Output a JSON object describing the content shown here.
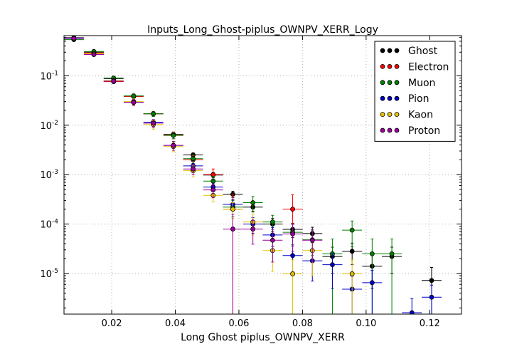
{
  "chart_data": {
    "type": "scatter",
    "title": "Inputs_Long_Ghost-piplus_OWNPV_XERR_Logy",
    "xlabel": "Long Ghost piplus_OWNPV_XERR",
    "ylabel": "",
    "xlim": [
      0.005,
      0.13
    ],
    "ylim": [
      1.5e-06,
      0.65
    ],
    "yscale": "log",
    "grid": true,
    "legend_position": "top-right",
    "x_ticks": [
      {
        "value": 0.02,
        "label": "0.02"
      },
      {
        "value": 0.04,
        "label": "0.04"
      },
      {
        "value": 0.06,
        "label": "0.06"
      },
      {
        "value": 0.08,
        "label": "0.08"
      },
      {
        "value": 0.1,
        "label": "0.10"
      },
      {
        "value": 0.12,
        "label": "0.12"
      }
    ],
    "y_ticks": [
      {
        "value": 1e-05,
        "base": "10",
        "exp": "-5"
      },
      {
        "value": 0.0001,
        "base": "10",
        "exp": "-4"
      },
      {
        "value": 0.001,
        "base": "10",
        "exp": "-3"
      },
      {
        "value": 0.01,
        "base": "10",
        "exp": "-2"
      },
      {
        "value": 0.1,
        "base": "10",
        "exp": "-1"
      }
    ],
    "bin_half_width": 0.003125,
    "series": [
      {
        "name": "Ghost",
        "color": "#000000",
        "points": [
          [
            0.0081,
            0.59,
            0.015
          ],
          [
            0.0144,
            0.3,
            0.01
          ],
          [
            0.0206,
            0.088,
            0.005
          ],
          [
            0.0269,
            0.039,
            0.0025
          ],
          [
            0.0331,
            0.017,
            0.0012
          ],
          [
            0.0394,
            0.0065,
            0.0006
          ],
          [
            0.0456,
            0.0025,
            0.00025
          ],
          [
            0.0519,
            0.00098,
            0.00012
          ],
          [
            0.0581,
            0.0004,
            6e-05
          ],
          [
            0.0644,
            0.00022,
            4.5e-05
          ],
          [
            0.0706,
            0.0001,
            3e-05
          ],
          [
            0.0769,
            7.8e-05,
            2.5e-05
          ],
          [
            0.0831,
            6.4e-05,
            2.2e-05
          ],
          [
            0.0894,
            2.2e-05,
            1.2e-05
          ],
          [
            0.0956,
            2.8e-05,
            1.3e-05
          ],
          [
            0.1019,
            1.4e-05,
            9e-06
          ],
          [
            0.1081,
            2.2e-05,
            1.2e-05
          ],
          [
            0.1206,
            7.2e-06,
            6e-06
          ]
        ]
      },
      {
        "name": "Electron",
        "color": "#ff0000",
        "points": [
          [
            0.0081,
            0.58,
            0.02
          ],
          [
            0.0144,
            0.29,
            0.015
          ],
          [
            0.0206,
            0.076,
            0.006
          ],
          [
            0.0269,
            0.038,
            0.004
          ],
          [
            0.0331,
            0.017,
            0.002
          ],
          [
            0.0394,
            0.0063,
            0.001
          ],
          [
            0.0456,
            0.002,
            0.0004
          ],
          [
            0.0519,
            0.001,
            0.0003
          ],
          [
            0.0581,
            0.0002,
            0.000199
          ],
          [
            0.0769,
            0.0002,
            0.00019
          ]
        ]
      },
      {
        "name": "Muon",
        "color": "#008000",
        "points": [
          [
            0.0081,
            0.54,
            0.02
          ],
          [
            0.0144,
            0.31,
            0.015
          ],
          [
            0.0206,
            0.09,
            0.007
          ],
          [
            0.0269,
            0.039,
            0.004
          ],
          [
            0.0331,
            0.017,
            0.002
          ],
          [
            0.0394,
            0.0062,
            0.0009
          ],
          [
            0.0456,
            0.0021,
            0.0004
          ],
          [
            0.0519,
            0.00074,
            0.00018
          ],
          [
            0.0581,
            0.00022,
            8e-05
          ],
          [
            0.0644,
            0.00027,
            9e-05
          ],
          [
            0.0706,
            0.00011,
            4e-05
          ],
          [
            0.0769,
            6.8e-05,
            3e-05
          ],
          [
            0.0831,
            4.8e-05,
            2.5e-05
          ],
          [
            0.0894,
            2.5e-05,
            2.49e-05
          ],
          [
            0.0956,
            7.5e-05,
            4e-05
          ],
          [
            0.1019,
            2.5e-05,
            2.49e-05
          ],
          [
            0.1081,
            2.5e-05,
            2.49e-05
          ]
        ]
      },
      {
        "name": "Pion",
        "color": "#0000cc",
        "points": [
          [
            0.0081,
            0.58,
            0.012
          ],
          [
            0.0144,
            0.27,
            0.008
          ],
          [
            0.0206,
            0.078,
            0.004
          ],
          [
            0.0269,
            0.029,
            0.002
          ],
          [
            0.0331,
            0.0115,
            0.0009
          ],
          [
            0.0394,
            0.0039,
            0.0004
          ],
          [
            0.0456,
            0.0015,
            0.00018
          ],
          [
            0.0519,
            0.00056,
            9e-05
          ],
          [
            0.0581,
            0.00025,
            6e-05
          ],
          [
            0.0644,
            0.0001,
            3.5e-05
          ],
          [
            0.0706,
            6e-05,
            2.5e-05
          ],
          [
            0.0769,
            2.3e-05,
            1.3e-05
          ],
          [
            0.0831,
            1.8e-05,
            1.1e-05
          ],
          [
            0.0894,
            1.5e-05,
            1e-05
          ],
          [
            0.0956,
            4.8e-06,
            4e-06
          ],
          [
            0.1019,
            6.5e-06,
            5e-06
          ],
          [
            0.1144,
            1.6e-06,
            1.5e-06
          ],
          [
            0.1206,
            3.3e-06,
            2.5e-06
          ]
        ]
      },
      {
        "name": "Kaon",
        "color": "#e6c200",
        "points": [
          [
            0.0081,
            0.57,
            0.02
          ],
          [
            0.0144,
            0.28,
            0.015
          ],
          [
            0.0206,
            0.08,
            0.007
          ],
          [
            0.0269,
            0.03,
            0.004
          ],
          [
            0.0331,
            0.0103,
            0.002
          ],
          [
            0.0394,
            0.0037,
            0.0008
          ],
          [
            0.0456,
            0.0012,
            0.0003
          ],
          [
            0.0519,
            0.00038,
            0.0001
          ],
          [
            0.0581,
            0.0002,
            7e-05
          ],
          [
            0.0644,
            0.00011,
            5e-05
          ],
          [
            0.0706,
            2.9e-05,
            1.8e-05
          ],
          [
            0.0769,
            9.8e-06,
            9e-06
          ],
          [
            0.0831,
            2.9e-05,
            2e-05
          ],
          [
            0.0956,
            9.8e-06,
            9e-06
          ]
        ]
      },
      {
        "name": "Proton",
        "color": "#990099",
        "points": [
          [
            0.0081,
            0.57,
            0.02
          ],
          [
            0.0144,
            0.27,
            0.015
          ],
          [
            0.0206,
            0.078,
            0.007
          ],
          [
            0.0269,
            0.029,
            0.004
          ],
          [
            0.0331,
            0.011,
            0.002
          ],
          [
            0.0394,
            0.0039,
            0.0008
          ],
          [
            0.0456,
            0.0013,
            0.0003
          ],
          [
            0.0519,
            0.00049,
            0.00015
          ],
          [
            0.0581,
            7.9e-05,
            7.89e-05
          ],
          [
            0.0644,
            7.9e-05,
            4e-05
          ],
          [
            0.0706,
            4.7e-05,
            3e-05
          ],
          [
            0.0769,
            6.3e-05,
            3.5e-05
          ],
          [
            0.0831,
            4.7e-05,
            3e-05
          ]
        ]
      }
    ]
  }
}
